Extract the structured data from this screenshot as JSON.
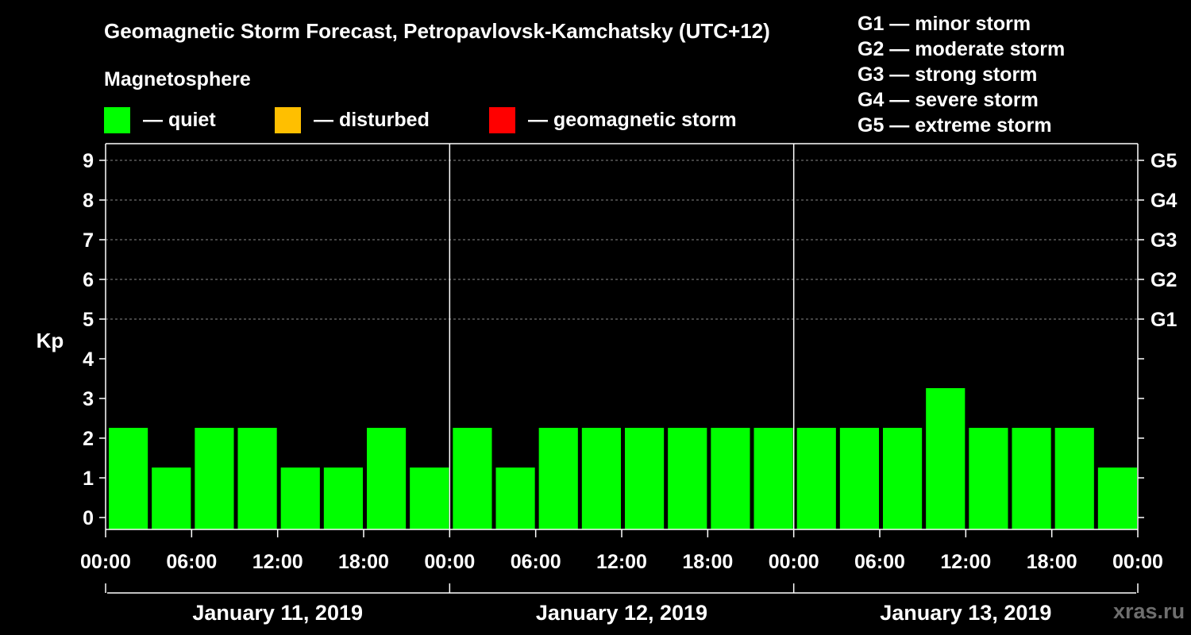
{
  "title": "Geomagnetic Storm Forecast, Petropavlovsk-Kamchatsky (UTC+12)",
  "legend": {
    "heading": "Magnetosphere",
    "items": [
      {
        "label": "— quiet",
        "color": "#00ff00"
      },
      {
        "label": "— disturbed",
        "color": "#ffbf00"
      },
      {
        "label": "— geomagnetic storm",
        "color": "#ff0000"
      }
    ]
  },
  "storm_levels": [
    "G1 — minor storm",
    "G2 — moderate storm",
    "G3 — strong storm",
    "G4 — severe storm",
    "G5 — extreme storm"
  ],
  "watermark": "xras.ru",
  "chart_data": {
    "type": "bar",
    "ylabel": "Kp",
    "ylim": [
      0,
      9
    ],
    "yticks": [
      "0",
      "1",
      "2",
      "3",
      "4",
      "5",
      "6",
      "7",
      "8",
      "9"
    ],
    "right_ticks": [
      {
        "kp": 5,
        "label": "G1"
      },
      {
        "kp": 6,
        "label": "G2"
      },
      {
        "kp": 7,
        "label": "G3"
      },
      {
        "kp": 8,
        "label": "G4"
      },
      {
        "kp": 9,
        "label": "G5"
      }
    ],
    "grid": "dashed horizontal lines at Kp 5–9",
    "xticks": [
      "00:00",
      "06:00",
      "12:00",
      "18:00",
      "00:00",
      "06:00",
      "12:00",
      "18:00",
      "00:00",
      "06:00",
      "12:00",
      "18:00",
      "00:00"
    ],
    "days": [
      "January 11, 2019",
      "January 12, 2019",
      "January 13, 2019"
    ],
    "interval_hours": 3,
    "values": [
      2,
      1,
      2,
      2,
      1,
      1,
      2,
      1,
      2,
      1,
      2,
      2,
      2,
      2,
      2,
      2,
      2,
      2,
      2,
      3,
      2,
      2,
      2,
      1
    ],
    "bar_color": "#00ff00"
  }
}
